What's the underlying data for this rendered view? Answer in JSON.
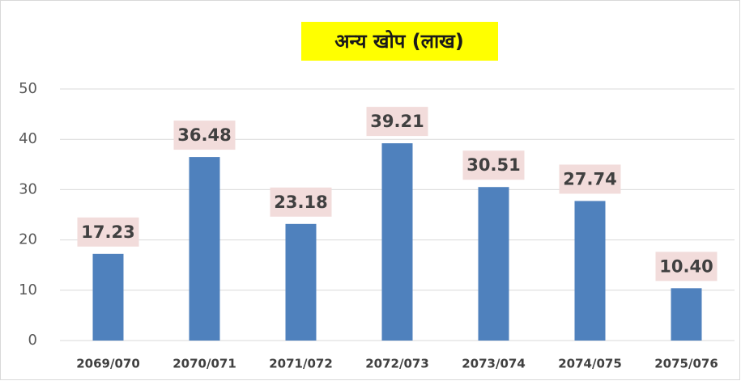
{
  "chart_data": {
    "type": "bar",
    "title": "अन्य खोप (लाख)",
    "categories": [
      "2069/070",
      "2070/071",
      "2071/072",
      "2072/073",
      "2073/074",
      "2074/075",
      "2075/076"
    ],
    "values": [
      17.23,
      36.48,
      23.18,
      39.21,
      30.51,
      27.74,
      10.4
    ],
    "value_labels": [
      "17.23",
      "36.48",
      "23.18",
      "39.21",
      "30.51",
      "27.74",
      "10.40"
    ],
    "color": "#4f81bd",
    "ylim": [
      0,
      50
    ],
    "yticks": [
      0,
      10,
      20,
      30,
      40,
      50
    ],
    "grid": true
  }
}
